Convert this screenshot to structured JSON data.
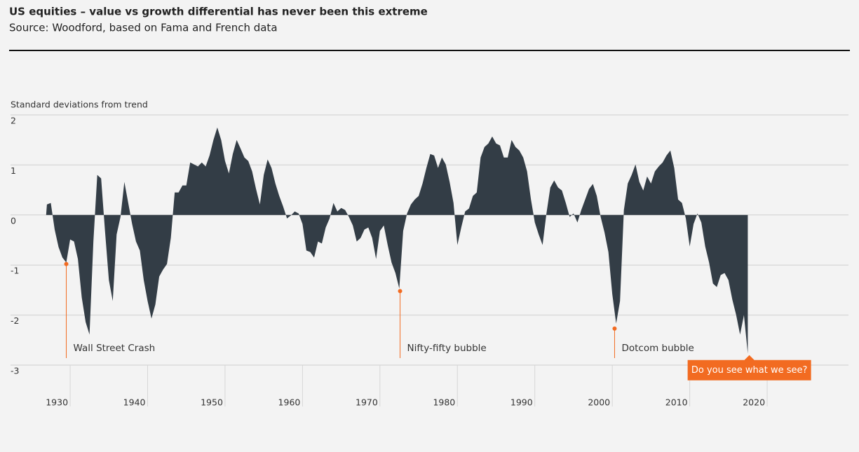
{
  "chart_data": {
    "type": "area",
    "title": "US equities – value vs growth differential has never been this extreme",
    "subtitle": "Source: Woodford, based on Fama and French data",
    "y_label": "Standard deviations from trend",
    "color": "#333d46",
    "x": [
      1926.9,
      1927,
      1927.5,
      1928,
      1928.5,
      1929,
      1929.5,
      1930,
      1930.5,
      1931,
      1931.5,
      1932,
      1932.5,
      1933,
      1933.5,
      1934,
      1934.5,
      1935,
      1935.5,
      1936,
      1936.5,
      1937,
      1937.5,
      1938,
      1938.5,
      1939,
      1939.5,
      1940,
      1940.5,
      1941,
      1941.5,
      1942,
      1942.5,
      1943,
      1943.5,
      1944,
      1944.5,
      1945,
      1945.5,
      1946,
      1946.5,
      1947,
      1947.5,
      1948,
      1948.5,
      1949,
      1949.5,
      1950,
      1950.5,
      1951,
      1951.5,
      1952,
      1952.5,
      1953,
      1953.5,
      1954,
      1954.5,
      1955,
      1955.5,
      1956,
      1956.5,
      1957,
      1957.5,
      1958,
      1958.5,
      1959,
      1959.5,
      1960,
      1960.5,
      1961,
      1961.5,
      1962,
      1962.5,
      1963,
      1963.5,
      1964,
      1964.5,
      1965,
      1965.5,
      1966,
      1966.5,
      1967,
      1967.5,
      1968,
      1968.5,
      1969,
      1969.5,
      1970,
      1970.5,
      1971,
      1971.5,
      1972,
      1972.5,
      1973,
      1973.5,
      1974,
      1974.5,
      1975,
      1975.5,
      1976,
      1976.5,
      1977,
      1977.5,
      1978,
      1978.5,
      1979,
      1979.5,
      1980,
      1980.5,
      1981,
      1981.5,
      1982,
      1982.5,
      1983,
      1983.5,
      1984,
      1984.5,
      1985,
      1985.5,
      1986,
      1986.5,
      1987,
      1987.5,
      1988,
      1988.5,
      1989,
      1989.5,
      1990,
      1990.5,
      1991,
      1991.5,
      1992,
      1992.5,
      1993,
      1993.5,
      1994,
      1994.5,
      1995,
      1995.5,
      1996,
      1996.5,
      1997,
      1997.5,
      1998,
      1998.5,
      1999,
      1999.5,
      2000,
      2000.5,
      2001,
      2001.5,
      2002,
      2002.5,
      2003,
      2003.5,
      2004,
      2004.5,
      2005,
      2005.5,
      2006,
      2006.5,
      2007,
      2007.5,
      2008,
      2008.5,
      2009,
      2009.5,
      2010,
      2010.5,
      2011,
      2011.5,
      2012,
      2012.5,
      2013,
      2013.5,
      2014,
      2014.5,
      2015,
      2015.5,
      2016,
      2016.5,
      2017,
      2017.5
    ],
    "values": [
      0,
      0.21,
      0.24,
      -0.29,
      -0.64,
      -0.85,
      -0.95,
      -0.49,
      -0.53,
      -0.88,
      -1.65,
      -2.14,
      -2.39,
      -0.53,
      0.8,
      0.73,
      -0.32,
      -1.3,
      -1.72,
      -0.39,
      -0.04,
      0.66,
      0.24,
      -0.18,
      -0.53,
      -0.71,
      -1.3,
      -1.72,
      -2.07,
      -1.79,
      -1.23,
      -1.09,
      -0.98,
      -0.46,
      0.45,
      0.45,
      0.59,
      0.59,
      1.05,
      1.01,
      0.97,
      1.05,
      0.97,
      1.19,
      1.5,
      1.75,
      1.5,
      1.08,
      0.83,
      1.22,
      1.5,
      1.33,
      1.15,
      1.08,
      0.87,
      0.52,
      0.21,
      0.8,
      1.11,
      0.94,
      0.63,
      0.38,
      0.17,
      -0.07,
      -0.01,
      0.07,
      0.03,
      -0.18,
      -0.71,
      -0.74,
      -0.85,
      -0.53,
      -0.57,
      -0.25,
      -0.07,
      0.24,
      0.07,
      0.14,
      0.1,
      -0.04,
      -0.21,
      -0.53,
      -0.46,
      -0.29,
      -0.25,
      -0.46,
      -0.88,
      -0.32,
      -0.21,
      -0.6,
      -0.95,
      -1.16,
      -1.47,
      -0.32,
      0.03,
      0.21,
      0.31,
      0.38,
      0.63,
      0.94,
      1.22,
      1.19,
      0.94,
      1.15,
      1.01,
      0.66,
      0.24,
      -0.6,
      -0.25,
      0.07,
      0.13,
      0.38,
      0.45,
      1.15,
      1.36,
      1.43,
      1.57,
      1.43,
      1.39,
      1.15,
      1.15,
      1.5,
      1.36,
      1.29,
      1.15,
      0.87,
      0.31,
      -0.15,
      -0.39,
      -0.6,
      0.03,
      0.55,
      0.69,
      0.55,
      0.49,
      0.24,
      -0.04,
      0.03,
      -0.15,
      0.1,
      0.31,
      0.52,
      0.62,
      0.38,
      -0.04,
      -0.35,
      -0.74,
      -1.58,
      -2.17,
      -1.72,
      0.1,
      0.63,
      0.8,
      1.01,
      0.66,
      0.49,
      0.77,
      0.63,
      0.87,
      0.97,
      1.05,
      1.19,
      1.29,
      0.94,
      0.31,
      0.24,
      -0.07,
      -0.63,
      -0.18,
      0.03,
      -0.15,
      -0.63,
      -0.95,
      -1.37,
      -1.44,
      -1.2,
      -1.16,
      -1.3,
      -1.69,
      -2.0,
      -2.39,
      -2.0,
      -2.77
    ],
    "xlim": [
      1922.3,
      2030.5
    ],
    "xticks": [
      1930,
      1940,
      1950,
      1960,
      1970,
      1980,
      1990,
      2000,
      2010,
      2020
    ],
    "ylim": [
      -3,
      2
    ],
    "yticks": [
      2,
      1,
      0,
      -1,
      -2,
      -3
    ],
    "grid": true,
    "annotations": [
      {
        "text": "Wall Street Crash",
        "x": 1929.5,
        "y": -0.98
      },
      {
        "text": "Nifty-fifty bubble",
        "x": 1972.6,
        "y": -1.52
      },
      {
        "text": "Dotcom bubble",
        "x": 2000.3,
        "y": -2.27
      }
    ],
    "callout": {
      "text": "Do you see what we see?",
      "x": 2017.7,
      "y": -2.8,
      "color": "#f26b21"
    }
  }
}
